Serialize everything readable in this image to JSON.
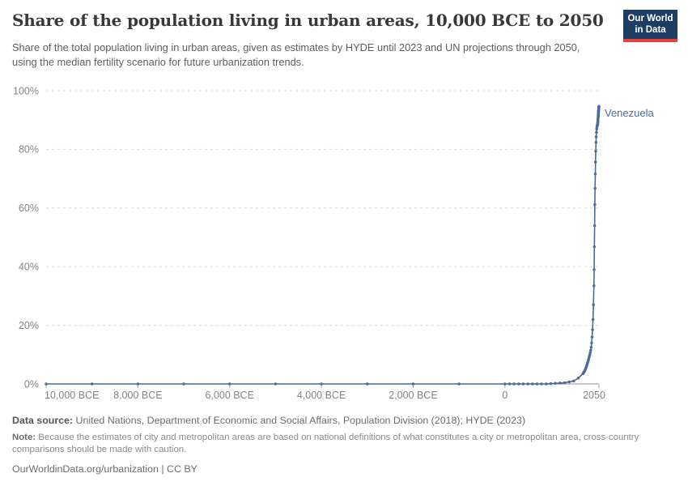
{
  "header": {
    "title": "Share of the population living in urban areas, 10,000 BCE to 2050",
    "subtitle": "Share of the total population living in urban areas, given as estimates by HYDE until 2023 and UN projections through 2050, using the median fertility scenario for future urbanization trends.",
    "logo": {
      "line1": "Our World",
      "line2": "in Data",
      "bg_color": "#1d3d63",
      "accent_color": "#e5433a"
    }
  },
  "chart_data": {
    "type": "line",
    "title": "Share of the population living in urban areas, 10,000 BCE to 2050",
    "xlabel": "",
    "ylabel": "",
    "xlim": [
      -10000,
      2050
    ],
    "ylim": [
      0,
      100
    ],
    "grid": "horizontal-dashed",
    "legend_position": "end-of-line-label",
    "colors": {
      "line": "#4c6a9c",
      "entity_label": "#4c6a9c",
      "gridline": "#dadada",
      "axis_line": "#8f8f8f",
      "tick_label": "#848484",
      "tick_mark": "#a3a3a3"
    },
    "x_ticks": [
      {
        "value": -10000,
        "label": "10,000 BCE"
      },
      {
        "value": -8000,
        "label": "8,000 BCE"
      },
      {
        "value": -6000,
        "label": "6,000 BCE"
      },
      {
        "value": -4000,
        "label": "4,000 BCE"
      },
      {
        "value": -2000,
        "label": "2,000 BCE"
      },
      {
        "value": 0,
        "label": "0"
      },
      {
        "value": 2050,
        "label": "2050"
      }
    ],
    "y_ticks": [
      {
        "value": 0,
        "label": "0%"
      },
      {
        "value": 20,
        "label": "20%"
      },
      {
        "value": 40,
        "label": "40%"
      },
      {
        "value": 60,
        "label": "60%"
      },
      {
        "value": 80,
        "label": "80%"
      },
      {
        "value": 100,
        "label": "100%"
      }
    ],
    "series": [
      {
        "name": "Venezuela",
        "color": "#4c6a9c",
        "points": [
          [
            -10000,
            0
          ],
          [
            -9000,
            0
          ],
          [
            -8000,
            0
          ],
          [
            -7000,
            0
          ],
          [
            -6000,
            0
          ],
          [
            -5000,
            0
          ],
          [
            -4000,
            0
          ],
          [
            -3000,
            0
          ],
          [
            -2000,
            0
          ],
          [
            -1000,
            0
          ],
          [
            0,
            0
          ],
          [
            100,
            0
          ],
          [
            200,
            0
          ],
          [
            300,
            0
          ],
          [
            400,
            0
          ],
          [
            500,
            0
          ],
          [
            600,
            0
          ],
          [
            700,
            0
          ],
          [
            800,
            0
          ],
          [
            900,
            0
          ],
          [
            1000,
            0.1
          ],
          [
            1100,
            0.2
          ],
          [
            1200,
            0.3
          ],
          [
            1300,
            0.4
          ],
          [
            1400,
            0.7
          ],
          [
            1500,
            1
          ],
          [
            1600,
            2
          ],
          [
            1700,
            3.5
          ],
          [
            1710,
            3.7
          ],
          [
            1720,
            4
          ],
          [
            1730,
            4.2
          ],
          [
            1740,
            4.5
          ],
          [
            1750,
            4.8
          ],
          [
            1760,
            5.2
          ],
          [
            1770,
            5.6
          ],
          [
            1780,
            6.1
          ],
          [
            1790,
            6.6
          ],
          [
            1800,
            7.1
          ],
          [
            1810,
            7.6
          ],
          [
            1820,
            8.2
          ],
          [
            1830,
            8.8
          ],
          [
            1840,
            9.4
          ],
          [
            1850,
            10
          ],
          [
            1860,
            10.7
          ],
          [
            1870,
            11.5
          ],
          [
            1880,
            12.5
          ],
          [
            1890,
            14
          ],
          [
            1900,
            16
          ],
          [
            1910,
            18.5
          ],
          [
            1920,
            22
          ],
          [
            1930,
            27
          ],
          [
            1940,
            33.5
          ],
          [
            1945,
            39
          ],
          [
            1950,
            46.8
          ],
          [
            1955,
            54
          ],
          [
            1960,
            61.2
          ],
          [
            1965,
            66.7
          ],
          [
            1970,
            71.6
          ],
          [
            1975,
            75.7
          ],
          [
            1980,
            79.4
          ],
          [
            1985,
            82.4
          ],
          [
            1990,
            84.3
          ],
          [
            1995,
            85.8
          ],
          [
            2000,
            86.9
          ],
          [
            2005,
            87.6
          ],
          [
            2010,
            88.1
          ],
          [
            2015,
            88.2
          ],
          [
            2020,
            88.3
          ],
          [
            2021,
            88.4
          ],
          [
            2022,
            88.6
          ],
          [
            2023,
            88.8
          ],
          [
            2024,
            89.0
          ],
          [
            2025,
            89.2
          ],
          [
            2026,
            89.5
          ],
          [
            2027,
            89.7
          ],
          [
            2028,
            90.0
          ],
          [
            2029,
            90.2
          ],
          [
            2030,
            90.5
          ],
          [
            2031,
            90.7
          ],
          [
            2032,
            91.0
          ],
          [
            2033,
            91.2
          ],
          [
            2034,
            91.4
          ],
          [
            2035,
            91.7
          ],
          [
            2036,
            91.9
          ],
          [
            2037,
            92.1
          ],
          [
            2038,
            92.3
          ],
          [
            2039,
            92.6
          ],
          [
            2040,
            92.8
          ],
          [
            2041,
            93.0
          ],
          [
            2042,
            93.2
          ],
          [
            2043,
            93.4
          ],
          [
            2044,
            93.6
          ],
          [
            2045,
            93.8
          ],
          [
            2046,
            94.0
          ],
          [
            2047,
            94.2
          ],
          [
            2048,
            94.4
          ],
          [
            2049,
            94.5
          ],
          [
            2050,
            94.7
          ]
        ]
      }
    ]
  },
  "footer": {
    "datasource_label": "Data source:",
    "datasource_text": " United Nations, Department of Economic and Social Affairs, Population Division (2018); HYDE (2023)",
    "note_label": "Note:",
    "note_text": " Because the estimates of city and metropolitan areas are based on national definitions of what constitutes a city or metropolitan area, cross-country comparisons should be made with caution.",
    "url_text": "OurWorldinData.org/urbanization | CC BY"
  }
}
